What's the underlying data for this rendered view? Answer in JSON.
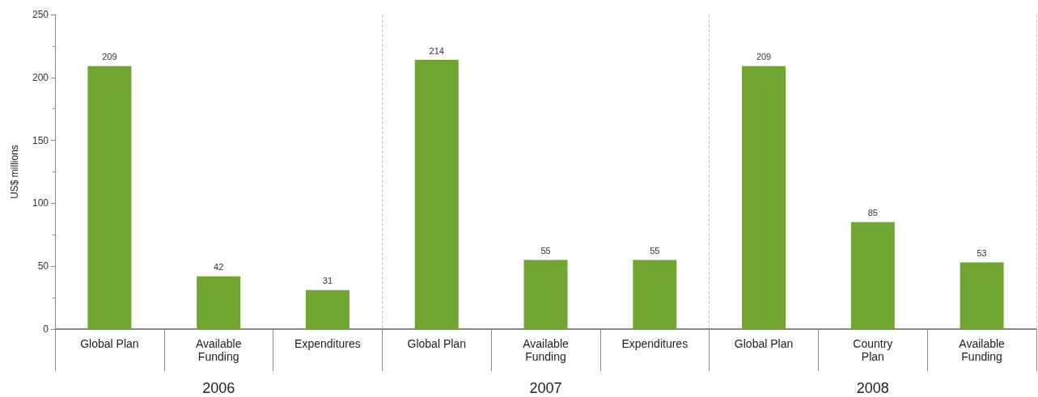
{
  "chart_data": {
    "type": "bar",
    "ylabel": "US$ millions",
    "categories": [
      "Global Plan",
      "Available\nFunding",
      "Expenditures",
      "Global Plan",
      "Available\nFunding",
      "Expenditures",
      "Global Plan",
      "Country\nPlan",
      "Available\nFunding"
    ],
    "values": [
      209,
      42,
      31,
      214,
      55,
      55,
      209,
      85,
      53
    ],
    "color": "#71a532",
    "ylim": [
      0,
      250
    ],
    "yticks": [
      0,
      50,
      100,
      150,
      200,
      250
    ],
    "grid": false,
    "data_labels": true,
    "annotations": [
      "2006",
      "2007",
      "2008"
    ]
  }
}
